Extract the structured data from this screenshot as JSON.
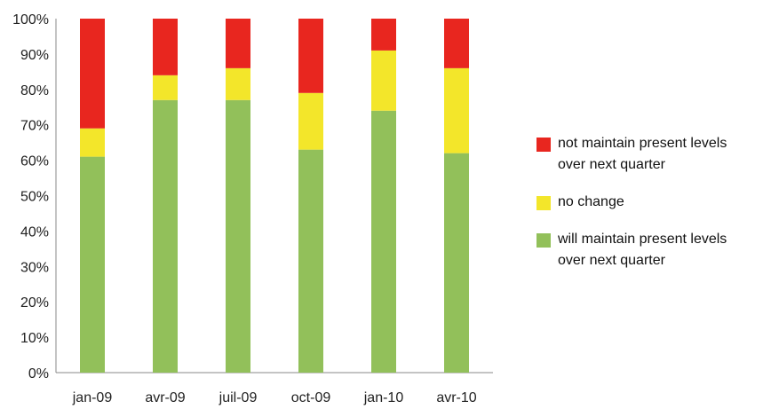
{
  "chart_data": {
    "type": "bar",
    "stacked": true,
    "categories": [
      "jan-09",
      "avr-09",
      "juil-09",
      "oct-09",
      "jan-10",
      "avr-10"
    ],
    "series": [
      {
        "name": "will maintain present levels over next quarter",
        "color": "#92c05a",
        "values": [
          61,
          77,
          77,
          63,
          74,
          62
        ]
      },
      {
        "name": "no change",
        "color": "#f3e62a",
        "values": [
          8,
          7,
          9,
          16,
          17,
          24
        ]
      },
      {
        "name": "not maintain present levels over next quarter",
        "color": "#e8261f",
        "values": [
          31,
          16,
          14,
          21,
          9,
          14
        ]
      }
    ],
    "yticks": [
      "0%",
      "10%",
      "20%",
      "30%",
      "40%",
      "50%",
      "60%",
      "70%",
      "80%",
      "90%",
      "100%"
    ],
    "ylim": [
      0,
      100
    ],
    "grid": false,
    "legend_position": "right",
    "legend": [
      {
        "line1": "not maintain present levels",
        "line2": "over next quarter",
        "color": "#e8261f"
      },
      {
        "line1": "no change",
        "line2": "",
        "color": "#f3e62a"
      },
      {
        "line1": "will maintain present levels",
        "line2": "over next quarter",
        "color": "#92c05a"
      }
    ]
  }
}
